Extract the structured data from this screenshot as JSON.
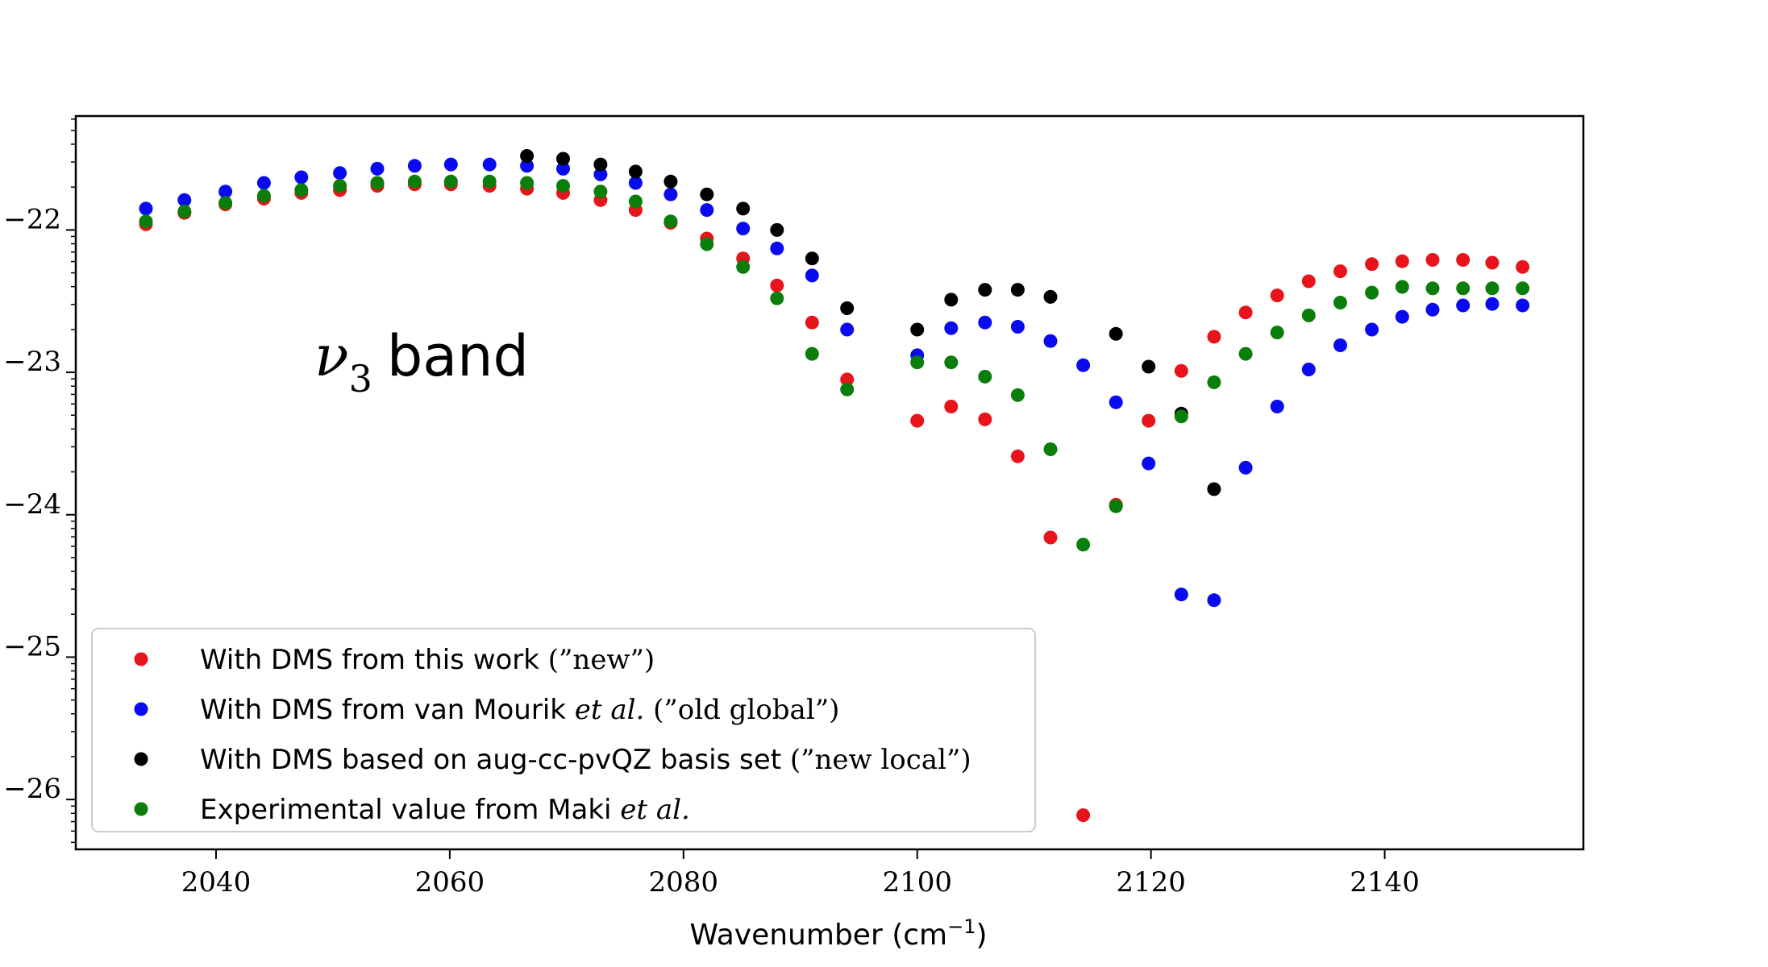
{
  "chart_data": {
    "type": "scatter",
    "title": "",
    "annotation": {
      "symbol": "ν",
      "subscript": "3",
      "text": "band"
    },
    "xlabel": {
      "text": "Wavenumber (cm",
      "exponent": "−1",
      "suffix": ")"
    },
    "ylabel": "",
    "xlim": [
      2028,
      2157
    ],
    "ylim": [
      -26.35,
      -21.2
    ],
    "xticks": [
      2040,
      2060,
      2080,
      2100,
      2120,
      2140
    ],
    "xtick_labels": [
      "2040",
      "2060",
      "2080",
      "2100",
      "2120",
      "2140"
    ],
    "yticks": [
      -22,
      -23,
      -24,
      -25,
      -26
    ],
    "ytick_labels": [
      "−22",
      "−23",
      "−24",
      "−25",
      "−26"
    ],
    "grid": false,
    "legend_position": "bottom-left",
    "series": [
      {
        "name": "With DMS from this work (”new”)",
        "legend": {
          "prefix": "With DMS from this work ",
          "italic": "",
          "suffix": "(”new”)"
        },
        "color": "#e8141b",
        "x": [
          2034,
          2037.3,
          2040.8,
          2044.1,
          2047.3,
          2050.6,
          2053.8,
          2057,
          2060.1,
          2063.4,
          2066.6,
          2069.7,
          2072.9,
          2075.9,
          2078.9,
          2082,
          2085.1,
          2088,
          2091,
          2094,
          2100,
          2102.9,
          2105.8,
          2108.6,
          2111.4,
          2114.2,
          2117,
          2119.8,
          2122.6,
          2125.4,
          2128.1,
          2130.8,
          2133.5,
          2136.2,
          2138.9,
          2141.5,
          2144.1,
          2146.7,
          2149.2,
          2151.8
        ],
        "y": [
          -21.96,
          -21.88,
          -21.82,
          -21.78,
          -21.74,
          -21.72,
          -21.69,
          -21.68,
          -21.68,
          -21.69,
          -21.71,
          -21.74,
          -21.79,
          -21.86,
          -21.95,
          -22.06,
          -22.2,
          -22.39,
          -22.65,
          -23.05,
          -23.34,
          -23.24,
          -23.33,
          -23.59,
          -24.16,
          -26.11,
          -23.93,
          -23.34,
          -22.99,
          -22.75,
          -22.58,
          -22.46,
          -22.36,
          -22.29,
          -22.24,
          -22.22,
          -22.21,
          -22.21,
          -22.23,
          -22.26
        ]
      },
      {
        "name": "With DMS from van Mourik et al. (”old global”)",
        "legend": {
          "prefix": "With DMS from van Mourik ",
          "italic": "et al.",
          "suffix": " (”old global”)"
        },
        "color": "#0a0af0",
        "x": [
          2034,
          2037.3,
          2040.8,
          2044.1,
          2047.3,
          2050.6,
          2053.8,
          2057,
          2060.1,
          2063.4,
          2066.6,
          2069.7,
          2072.9,
          2075.9,
          2078.9,
          2082,
          2085.1,
          2088,
          2091,
          2094,
          2100,
          2102.9,
          2105.8,
          2108.6,
          2111.4,
          2114.2,
          2117,
          2119.8,
          2122.6,
          2125.4,
          2128.1,
          2130.8,
          2133.5,
          2136.2,
          2138.9,
          2141.5,
          2144.1,
          2146.7,
          2149.2,
          2151.8
        ],
        "y": [
          -21.85,
          -21.79,
          -21.73,
          -21.67,
          -21.63,
          -21.6,
          -21.57,
          -21.55,
          -21.54,
          -21.54,
          -21.55,
          -21.57,
          -21.61,
          -21.67,
          -21.75,
          -21.86,
          -21.99,
          -22.13,
          -22.32,
          -22.7,
          -22.88,
          -22.69,
          -22.65,
          -22.68,
          -22.78,
          -22.95,
          -23.21,
          -23.64,
          -24.56,
          -24.6,
          -23.67,
          -23.24,
          -22.98,
          -22.81,
          -22.7,
          -22.61,
          -22.56,
          -22.53,
          -22.52,
          -22.53
        ]
      },
      {
        "name": "With DMS based on aug-cc-pvQZ basis set (”new local”)",
        "legend": {
          "prefix": "With DMS based on aug-cc-pvQZ basis set ",
          "italic": "",
          "suffix": "(”new local”)"
        },
        "color": "#000000",
        "x": [
          2066.6,
          2069.7,
          2072.9,
          2075.9,
          2078.9,
          2082,
          2085.1,
          2088,
          2091,
          2094,
          2100,
          2102.9,
          2105.8,
          2108.6,
          2111.4,
          2117,
          2119.8,
          2122.6,
          2125.4
        ],
        "y": [
          -21.48,
          -21.5,
          -21.54,
          -21.59,
          -21.66,
          -21.75,
          -21.85,
          -22.0,
          -22.2,
          -22.55,
          -22.7,
          -22.49,
          -22.42,
          -22.42,
          -22.47,
          -22.73,
          -22.96,
          -23.29,
          -23.82
        ]
      },
      {
        "name": "Experimental value from Maki et al.",
        "legend": {
          "prefix": "Experimental value from Maki ",
          "italic": "et al.",
          "suffix": ""
        },
        "color": "#0a7d0a",
        "x": [
          2034,
          2037.3,
          2040.8,
          2044.1,
          2047.3,
          2050.6,
          2053.8,
          2057,
          2060.1,
          2063.4,
          2066.6,
          2069.7,
          2072.9,
          2075.9,
          2078.9,
          2082,
          2085.1,
          2088,
          2091,
          2094,
          2100,
          2102.9,
          2105.8,
          2108.6,
          2111.4,
          2114.2,
          2117,
          2122.6,
          2125.4,
          2128.1,
          2130.8,
          2133.5,
          2136.2,
          2138.9,
          2141.5,
          2144.1,
          2146.7,
          2149.2,
          2151.8
        ],
        "y": [
          -21.94,
          -21.87,
          -21.81,
          -21.76,
          -21.72,
          -21.69,
          -21.67,
          -21.66,
          -21.66,
          -21.66,
          -21.67,
          -21.69,
          -21.73,
          -21.8,
          -21.94,
          -22.1,
          -22.26,
          -22.48,
          -22.87,
          -23.12,
          -22.93,
          -22.93,
          -23.03,
          -23.16,
          -23.54,
          -24.21,
          -23.94,
          -23.31,
          -23.07,
          -22.87,
          -22.72,
          -22.6,
          -22.51,
          -22.44,
          -22.4,
          -22.41,
          -22.41,
          -22.41,
          -22.41
        ]
      }
    ]
  }
}
